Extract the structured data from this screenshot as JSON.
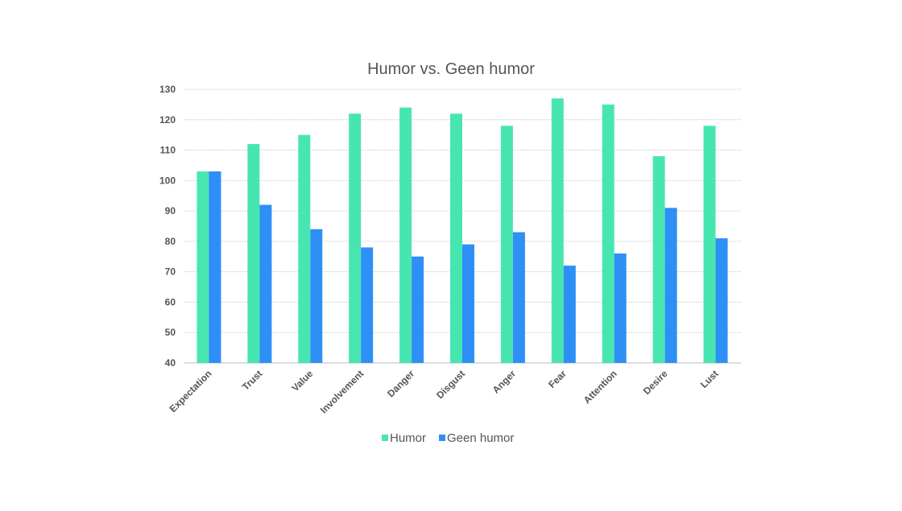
{
  "chart_data": {
    "type": "bar",
    "title": "Humor vs. Geen humor",
    "xlabel": "",
    "ylabel": "",
    "categories": [
      "Expectation",
      "Trust",
      "Value",
      "Involvement",
      "Danger",
      "Disgust",
      "Anger",
      "Fear",
      "Attention",
      "Desire",
      "Lust"
    ],
    "series": [
      {
        "name": "Humor",
        "color": "#47E6B1",
        "values": [
          103,
          112,
          115,
          122,
          124,
          122,
          118,
          127,
          125,
          108,
          118
        ]
      },
      {
        "name": "Geen humor",
        "color": "#2E8FF7",
        "values": [
          103,
          92,
          84,
          78,
          75,
          79,
          83,
          72,
          76,
          91,
          81
        ]
      }
    ],
    "ylim": [
      40,
      130
    ],
    "yticks": [
      40,
      50,
      60,
      70,
      80,
      90,
      100,
      110,
      120,
      130
    ],
    "grid": true,
    "legend": "bottom-center"
  }
}
